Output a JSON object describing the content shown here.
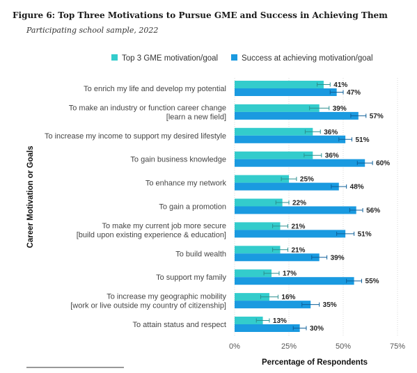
{
  "figure": {
    "title": "Figure 6: Top Three Motivations to Pursue GME and Success in Achieving Them",
    "subtitle": "Participating school sample, 2022"
  },
  "colors": {
    "motivation": "#33cccc",
    "success": "#1a9ae0",
    "error_bar_motivation": "#2a8f8f",
    "error_bar_success": "#0d5f99",
    "separator": "#333333"
  },
  "chart_data": {
    "type": "bar",
    "orientation": "horizontal",
    "categories": [
      [
        "To enrich my life and develop my potential"
      ],
      [
        "To make an industry or function career change",
        "[learn a new field]"
      ],
      [
        "To increase my income to support my desired lifestyle"
      ],
      [
        "To gain business knowledge"
      ],
      [
        "To enhance my network"
      ],
      [
        "To gain a promotion"
      ],
      [
        "To make my current job more secure",
        "[build upon existing experience & education]"
      ],
      [
        "To build wealth"
      ],
      [
        "To support my family"
      ],
      [
        "To increase my geographic mobility",
        "[work or live outside my country of citizenship]"
      ],
      [
        "To attain status and respect"
      ]
    ],
    "series": [
      {
        "name": "Top 3 GME motivation/goal",
        "values": [
          41,
          39,
          36,
          36,
          25,
          22,
          21,
          21,
          17,
          16,
          13
        ],
        "labels": [
          "41%",
          "39%",
          "36%",
          "36%",
          "25%",
          "22%",
          "21%",
          "21%",
          "17%",
          "16%",
          "13%"
        ],
        "error": [
          3,
          4.5,
          3.5,
          4,
          3.5,
          3,
          3.5,
          3.5,
          3.5,
          4,
          3
        ]
      },
      {
        "name": "Success at achieving motivation/goal",
        "values": [
          47,
          57,
          51,
          60,
          48,
          56,
          51,
          39,
          55,
          35,
          30
        ],
        "labels": [
          "47%",
          "57%",
          "51%",
          "60%",
          "48%",
          "56%",
          "51%",
          "39%",
          "55%",
          "35%",
          "30%"
        ],
        "error": [
          3,
          3.5,
          3,
          3.5,
          3.5,
          3,
          4,
          3.5,
          3.5,
          4,
          3
        ]
      }
    ],
    "xlim": [
      0,
      75
    ],
    "xticks": [
      0,
      25,
      50,
      75
    ],
    "xtick_labels": [
      "0%",
      "25%",
      "50%",
      "75%"
    ],
    "xlabel": "Percentage of Respondents",
    "ylabel": "Career Motivation or Goals",
    "legend_position": "top"
  }
}
